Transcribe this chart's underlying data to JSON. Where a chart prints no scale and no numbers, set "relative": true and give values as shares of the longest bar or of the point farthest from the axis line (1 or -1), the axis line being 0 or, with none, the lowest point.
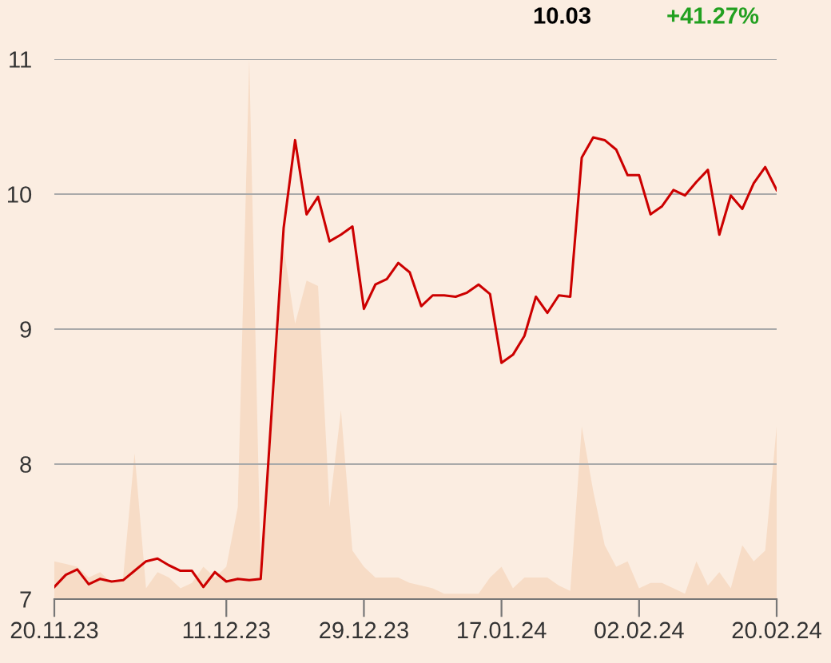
{
  "chart_data": [
    {
      "type": "line",
      "categories": [
        "20.11.23",
        null,
        null,
        null,
        null,
        null,
        null,
        null,
        null,
        null,
        null,
        null,
        null,
        null,
        null,
        "11.12.23",
        null,
        null,
        null,
        null,
        null,
        null,
        null,
        null,
        null,
        null,
        null,
        "29.12.23",
        null,
        null,
        null,
        null,
        null,
        null,
        null,
        null,
        null,
        null,
        null,
        "17.01.24",
        null,
        null,
        null,
        null,
        null,
        null,
        null,
        null,
        null,
        null,
        null,
        "02.02.24",
        null,
        null,
        null,
        null,
        null,
        null,
        null,
        null,
        null,
        null,
        null,
        "20.02.24"
      ],
      "series": [
        {
          "color": "#cc0000",
          "values": [
            7.09,
            7.18,
            7.22,
            7.11,
            7.15,
            7.13,
            7.14,
            7.21,
            7.28,
            7.3,
            7.25,
            7.21,
            7.21,
            7.09,
            7.2,
            7.13,
            7.15,
            7.14,
            7.15,
            8.45,
            9.75,
            10.4,
            9.85,
            9.98,
            9.65,
            9.7,
            9.76,
            9.15,
            9.33,
            9.37,
            9.49,
            9.42,
            9.17,
            9.25,
            9.25,
            9.24,
            9.27,
            9.33,
            9.26,
            8.75,
            8.81,
            8.95,
            9.24,
            9.12,
            9.25,
            9.24,
            10.27,
            10.42,
            10.4,
            10.33,
            10.14,
            10.14,
            9.85,
            9.91,
            10.03,
            9.99,
            10.09,
            10.18,
            9.7,
            9.99,
            9.89,
            10.08,
            10.2,
            10.03
          ]
        }
      ],
      "ylim": [
        7,
        11
      ],
      "yticks": [
        7,
        8,
        9,
        10,
        11
      ],
      "grid": "y",
      "marker": "none",
      "line_style": "solid",
      "annotations": [
        "10.03",
        "+41.27%"
      ]
    },
    {
      "type": "area",
      "relative": true,
      "tick_labels": false,
      "categories": [
        null,
        null,
        null,
        null,
        null,
        null,
        null,
        null,
        null,
        null,
        null,
        null,
        null,
        null,
        null,
        null,
        null,
        null,
        null,
        null,
        null,
        null,
        null,
        null,
        null,
        null,
        null,
        null,
        null,
        null,
        null,
        null,
        null,
        null,
        null,
        null,
        null,
        null,
        null,
        null,
        null,
        null,
        null,
        null,
        null,
        null,
        null,
        null,
        null,
        null,
        null,
        null,
        null,
        null,
        null,
        null,
        null,
        null,
        null,
        null,
        null,
        null,
        null,
        null
      ],
      "series": [
        {
          "color": "#f7dcc6",
          "values": [
            0.07,
            0.065,
            0.06,
            0.04,
            0.05,
            0.03,
            0.04,
            0.27,
            0.02,
            0.05,
            0.04,
            0.02,
            0.03,
            0.06,
            0.04,
            0.06,
            0.17,
            1,
            0.05,
            0.33,
            0.65,
            0.51,
            0.59,
            0.58,
            0.17,
            0.35,
            0.09,
            0.06,
            0.04,
            0.04,
            0.04,
            0.03,
            0.025,
            0.02,
            0.01,
            0.01,
            0.01,
            0.01,
            0.04,
            0.06,
            0.02,
            0.04,
            0.04,
            0.04,
            0.025,
            0.015,
            0.32,
            0.2,
            0.1,
            0.06,
            0.07,
            0.02,
            0.03,
            0.03,
            0.02,
            0.01,
            0.07,
            0.025,
            0.05,
            0.02,
            0.1,
            0.07,
            0.09,
            0.32
          ]
        }
      ]
    }
  ]
}
